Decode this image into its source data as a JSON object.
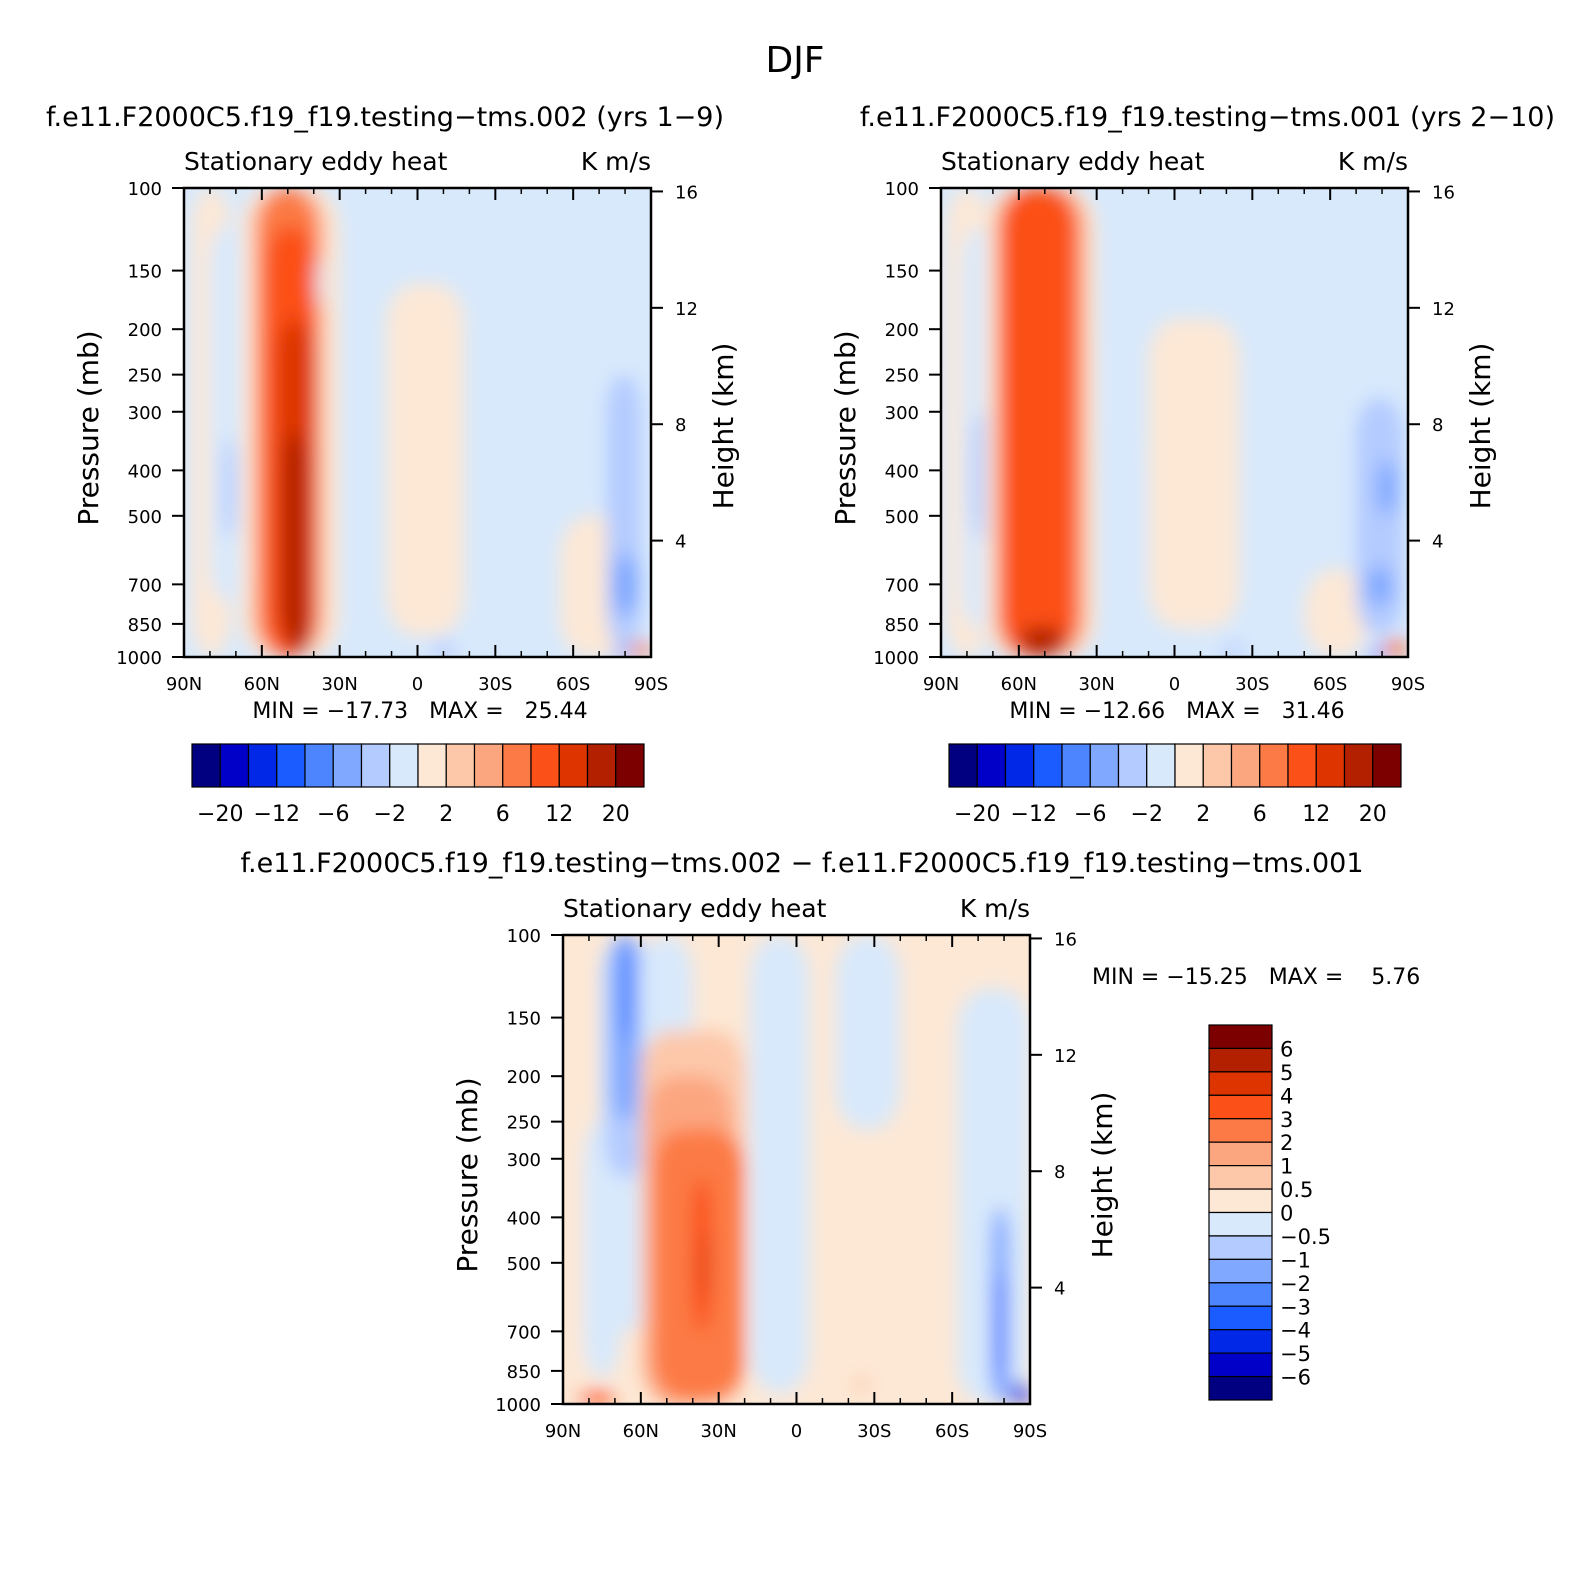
{
  "figure": {
    "title": "DJF"
  },
  "panels": [
    {
      "id": "tms002",
      "title": "f.e11.F2000C5.f19_f19.testing−tms.002 (yrs 1−9)",
      "var_label": "Stationary eddy heat",
      "units": "K m/s",
      "ylabel": "Pressure (mb)",
      "ylabel_right": "Height (km)",
      "min_max": "MIN = −17.73   MAX =   25.44"
    },
    {
      "id": "tms001",
      "title": "f.e11.F2000C5.f19_f19.testing−tms.001 (yrs 2−10)",
      "var_label": "Stationary eddy heat",
      "units": "K m/s",
      "ylabel": "Pressure (mb)",
      "ylabel_right": "Height (km)",
      "min_max": "MIN = −12.66   MAX =   31.46"
    },
    {
      "id": "diff",
      "title": "f.e11.F2000C5.f19_f19.testing−tms.002 − f.e11.F2000C5.f19_f19.testing−tms.001",
      "var_label": "Stationary eddy heat",
      "units": "K m/s",
      "ylabel": "Pressure (mb)",
      "ylabel_right": "Height (km)",
      "min_max": "MIN = −15.25   MAX =    5.76"
    }
  ],
  "chart_data": [
    {
      "type": "heatmap",
      "name": "tms002",
      "x_ticks": [
        "90N",
        "60N",
        "30N",
        "0",
        "30S",
        "60S",
        "90S"
      ],
      "y_ticks": [
        100,
        150,
        200,
        250,
        300,
        400,
        500,
        700,
        850,
        1000
      ],
      "height_ticks": [
        16,
        12,
        8,
        4
      ],
      "ylim": [
        1000,
        100
      ],
      "colorbar_labels": [
        "−20",
        "−12",
        "−6",
        "−2",
        "2",
        "6",
        "12",
        "20"
      ],
      "colorbar_colors": [
        "#000080",
        "#0000c8",
        "#0028e6",
        "#1a5cff",
        "#4d85ff",
        "#80a8ff",
        "#b3cbff",
        "#d8e9fc",
        "#fde8d5",
        "#fdc8aa",
        "#fca680",
        "#fc7a45",
        "#fb5018",
        "#dd3400",
        "#b32000",
        "#7d0000"
      ],
      "background_level": "#d8e9fc",
      "features": [
        {
          "lat": [
            -87,
            -72
          ],
          "p": [
            100,
            1000
          ],
          "value": 1
        },
        {
          "lat": [
            -80,
            -67
          ],
          "p": [
            120,
            760
          ],
          "value": -1.5
        },
        {
          "lat": [
            -75,
            -70
          ],
          "p": [
            340,
            560
          ],
          "value": -3
        },
        {
          "lat": [
            -68,
            -30
          ],
          "p": [
            100,
            1000
          ],
          "value": 1.5
        },
        {
          "lat": [
            -64,
            -35
          ],
          "p": [
            100,
            1000
          ],
          "value": 4
        },
        {
          "lat": [
            -62,
            -38
          ],
          "p": [
            100,
            1000
          ],
          "value": 8
        },
        {
          "lat": [
            -58,
            -40
          ],
          "p": [
            120,
            1000
          ],
          "value": 12
        },
        {
          "lat": [
            -54,
            -40
          ],
          "p": [
            190,
            950
          ],
          "value": 14
        },
        {
          "lat": [
            -52,
            -43
          ],
          "p": [
            330,
            960
          ],
          "value": 17
        },
        {
          "lat": [
            -47,
            -42
          ],
          "p": [
            800,
            990
          ],
          "value": 20
        },
        {
          "lat": [
            -39,
            -36
          ],
          "p": [
            140,
            180
          ],
          "value": -1.5
        },
        {
          "lat": [
            -12,
            18
          ],
          "p": [
            160,
            900
          ],
          "value": 1
        },
        {
          "lat": [
            -2,
            8
          ],
          "p": [
            400,
            560
          ],
          "value": 1
        },
        {
          "lat": [
            17,
            23
          ],
          "p": [
            125,
            165
          ],
          "value": -1.5
        },
        {
          "lat": [
            0,
            25
          ],
          "p": [
            900,
            1000
          ],
          "value": -1.5
        },
        {
          "lat": [
            5,
            15
          ],
          "p": [
            930,
            1000
          ],
          "value": -3
        },
        {
          "lat": [
            55,
            82
          ],
          "p": [
            500,
            1000
          ],
          "value": 1
        },
        {
          "lat": [
            73,
            86
          ],
          "p": [
            250,
            960
          ],
          "value": -2
        },
        {
          "lat": [
            75,
            85
          ],
          "p": [
            600,
            820
          ],
          "value": -4
        },
        {
          "lat": [
            76,
            81
          ],
          "p": [
            960,
            1000
          ],
          "value": -8
        },
        {
          "lat": [
            82,
            90
          ],
          "p": [
            930,
            1000
          ],
          "value": 8
        }
      ]
    },
    {
      "type": "heatmap",
      "name": "tms001",
      "x_ticks": [
        "90N",
        "60N",
        "30N",
        "0",
        "30S",
        "60S",
        "90S"
      ],
      "y_ticks": [
        100,
        150,
        200,
        250,
        300,
        400,
        500,
        700,
        850,
        1000
      ],
      "height_ticks": [
        16,
        12,
        8,
        4
      ],
      "ylim": [
        1000,
        100
      ],
      "colorbar_labels": [
        "−20",
        "−12",
        "−6",
        "−2",
        "2",
        "6",
        "12",
        "20"
      ],
      "colorbar_colors": [
        "#000080",
        "#0000c8",
        "#0028e6",
        "#1a5cff",
        "#4d85ff",
        "#80a8ff",
        "#b3cbff",
        "#d8e9fc",
        "#fde8d5",
        "#fdc8aa",
        "#fca680",
        "#fc7a45",
        "#fb5018",
        "#dd3400",
        "#b32000",
        "#7d0000"
      ],
      "background_level": "#d8e9fc",
      "features": [
        {
          "lat": [
            -88,
            -72
          ],
          "p": [
            100,
            1000
          ],
          "value": 1
        },
        {
          "lat": [
            -82,
            -66
          ],
          "p": [
            120,
            880
          ],
          "value": -1.5
        },
        {
          "lat": [
            -78,
            -70
          ],
          "p": [
            300,
            560
          ],
          "value": -3
        },
        {
          "lat": [
            -73,
            -30
          ],
          "p": [
            100,
            1000
          ],
          "value": 1.5
        },
        {
          "lat": [
            -70,
            -33
          ],
          "p": [
            100,
            1000
          ],
          "value": 4
        },
        {
          "lat": [
            -68,
            -36
          ],
          "p": [
            100,
            1000
          ],
          "value": 8
        },
        {
          "lat": [
            -66,
            -39
          ],
          "p": [
            100,
            1000
          ],
          "value": 12
        },
        {
          "lat": [
            -60,
            -42
          ],
          "p": [
            860,
            990
          ],
          "value": 17
        },
        {
          "lat": [
            -57,
            -52
          ],
          "p": [
            880,
            980
          ],
          "value": 20
        },
        {
          "lat": [
            -25,
            -19
          ],
          "p": [
            170,
            400
          ],
          "value": -1.5
        },
        {
          "lat": [
            -10,
            25
          ],
          "p": [
            190,
            870
          ],
          "value": 1
        },
        {
          "lat": [
            20,
            30
          ],
          "p": [
            140,
            180
          ],
          "value": -1.5
        },
        {
          "lat": [
            0,
            30
          ],
          "p": [
            900,
            1000
          ],
          "value": -1.5
        },
        {
          "lat": [
            18,
            27
          ],
          "p": [
            940,
            1000
          ],
          "value": -3
        },
        {
          "lat": [
            50,
            75
          ],
          "p": [
            650,
            1000
          ],
          "value": 1
        },
        {
          "lat": [
            70,
            88
          ],
          "p": [
            280,
            900
          ],
          "value": -2
        },
        {
          "lat": [
            74,
            84
          ],
          "p": [
            640,
            780
          ],
          "value": -4
        },
        {
          "lat": [
            78,
            86
          ],
          "p": [
            380,
            500
          ],
          "value": -4
        },
        {
          "lat": [
            75,
            81
          ],
          "p": [
            960,
            1000
          ],
          "value": -8
        },
        {
          "lat": [
            81,
            90
          ],
          "p": [
            920,
            1000
          ],
          "value": 8
        }
      ]
    },
    {
      "type": "heatmap",
      "name": "diff",
      "x_ticks": [
        "90N",
        "60N",
        "30N",
        "0",
        "30S",
        "60S",
        "90S"
      ],
      "y_ticks": [
        100,
        150,
        200,
        250,
        300,
        400,
        500,
        700,
        850,
        1000
      ],
      "height_ticks": [
        16,
        12,
        8,
        4
      ],
      "ylim": [
        1000,
        100
      ],
      "colorbar_labels": [
        "6",
        "5",
        "4",
        "3",
        "2",
        "1",
        "0.5",
        "0",
        "−0.5",
        "−1",
        "−2",
        "−3",
        "−4",
        "−5",
        "−6"
      ],
      "colorbar_colors": [
        "#7d0000",
        "#b32000",
        "#dd3400",
        "#fb5018",
        "#fc7a45",
        "#fca680",
        "#fdc8aa",
        "#fde8d5",
        "#d8e9fc",
        "#b3cbff",
        "#80a8ff",
        "#4d85ff",
        "#1a5cff",
        "#0028e6",
        "#0000c8",
        "#000080"
      ],
      "background_level": "#fde8d5",
      "features": [
        {
          "lat": [
            -90,
            -82
          ],
          "p": [
            100,
            1000
          ],
          "value": 0.2
        },
        {
          "lat": [
            -82,
            -68
          ],
          "p": [
            250,
            880
          ],
          "value": -0.2
        },
        {
          "lat": [
            -76,
            -56
          ],
          "p": [
            100,
            700
          ],
          "value": -0.2
        },
        {
          "lat": [
            -74,
            -58
          ],
          "p": [
            100,
            330
          ],
          "value": -0.8
        },
        {
          "lat": [
            -71,
            -61
          ],
          "p": [
            100,
            250
          ],
          "value": -1.5
        },
        {
          "lat": [
            -68,
            -63
          ],
          "p": [
            100,
            170
          ],
          "value": -2.5
        },
        {
          "lat": [
            -60,
            -40
          ],
          "p": [
            100,
            200
          ],
          "value": -0.2
        },
        {
          "lat": [
            -60,
            -20
          ],
          "p": [
            160,
            1000
          ],
          "value": 0.7
        },
        {
          "lat": [
            -58,
            -25
          ],
          "p": [
            200,
            1000
          ],
          "value": 1.5
        },
        {
          "lat": [
            -55,
            -20
          ],
          "p": [
            260,
            980
          ],
          "value": 2.5
        },
        {
          "lat": [
            -40,
            -33
          ],
          "p": [
            330,
            700
          ],
          "value": 3.5
        },
        {
          "lat": [
            -37,
            -34
          ],
          "p": [
            430,
            600
          ],
          "value": 4.5
        },
        {
          "lat": [
            -85,
            -70
          ],
          "p": [
            940,
            1000
          ],
          "value": 3.5
        },
        {
          "lat": [
            -18,
            5
          ],
          "p": [
            100,
            950
          ],
          "value": -0.2
        },
        {
          "lat": [
            15,
            40
          ],
          "p": [
            100,
            260
          ],
          "value": -0.2
        },
        {
          "lat": [
            62,
            90
          ],
          "p": [
            130,
            1000
          ],
          "value": -0.2
        },
        {
          "lat": [
            75,
            82
          ],
          "p": [
            380,
            1000
          ],
          "value": -1.5
        },
        {
          "lat": [
            77,
            80
          ],
          "p": [
            520,
            920
          ],
          "value": -3
        },
        {
          "lat": [
            82,
            90
          ],
          "p": [
            900,
            1000
          ],
          "value": -4
        },
        {
          "lat": [
            22,
            28
          ],
          "p": [
            880,
            940
          ],
          "value": 0.7
        }
      ]
    }
  ]
}
